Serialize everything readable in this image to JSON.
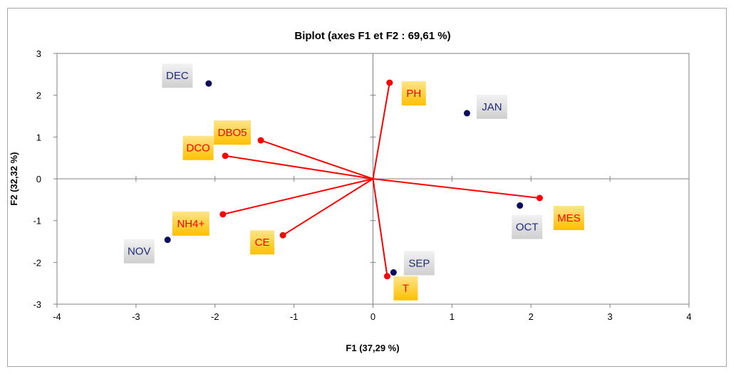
{
  "chart_data": {
    "type": "scatter",
    "title": "Biplot (axes F1 et F2 : 69,61 %)",
    "xlabel": "F1 (37,29 %)",
    "ylabel": "F2 (32,32 %)",
    "xlim": [
      -4,
      4
    ],
    "ylim": [
      -3,
      3
    ],
    "xticks": [
      "-4",
      "-3",
      "-2",
      "-1",
      "0",
      "1",
      "2",
      "3",
      "4"
    ],
    "yticks": [
      "-3",
      "-2",
      "-1",
      "0",
      "1",
      "2",
      "3"
    ],
    "grid": false,
    "observations": [
      {
        "label": "DEC",
        "x": -2.08,
        "y": 2.28
      },
      {
        "label": "JAN",
        "x": 1.19,
        "y": 1.57
      },
      {
        "label": "OCT",
        "x": 1.86,
        "y": -0.64
      },
      {
        "label": "SEP",
        "x": 0.26,
        "y": -2.24
      },
      {
        "label": "NOV",
        "x": -2.6,
        "y": -1.46
      }
    ],
    "variables": [
      {
        "label": "PH",
        "x": 0.21,
        "y": 2.3
      },
      {
        "label": "DBO5",
        "x": -1.42,
        "y": 0.92
      },
      {
        "label": "DCO",
        "x": -1.87,
        "y": 0.55
      },
      {
        "label": "MES",
        "x": 2.11,
        "y": -0.46
      },
      {
        "label": "NH4+",
        "x": -1.9,
        "y": -0.85
      },
      {
        "label": "CE",
        "x": -1.14,
        "y": -1.35
      },
      {
        "label": "T",
        "x": 0.18,
        "y": -2.33
      }
    ],
    "colors": {
      "observation": "#0d0d5e",
      "variable": "#ff0000",
      "observation_label_bg": "#d9d9d9",
      "observation_label_text": "#1f2a7a",
      "variable_label_bg": "#ffd23f",
      "variable_label_text": "#ff0000",
      "axis": "#808080"
    }
  }
}
